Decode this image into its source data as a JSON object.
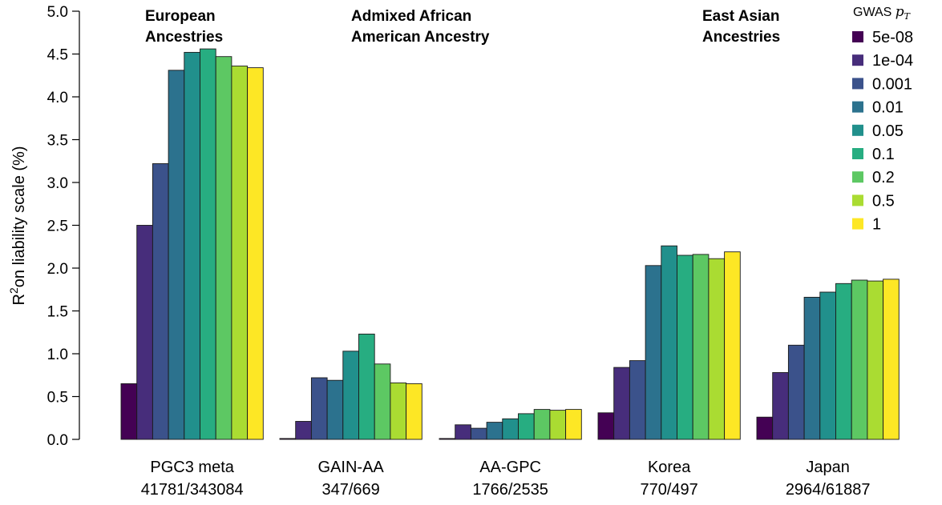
{
  "chart_data": {
    "type": "bar",
    "ylabel_prefix": "R",
    "ylabel_sup": "2",
    "ylabel_suffix": "on liability scale (%)",
    "ylim": [
      0,
      5
    ],
    "yticks": [
      "0.0",
      "0.5",
      "1.0",
      "1.5",
      "2.0",
      "2.5",
      "3.0",
      "3.5",
      "4.0",
      "4.5",
      "5.0"
    ],
    "group_titles": [
      {
        "lines": [
          "European",
          "Ancestries"
        ]
      },
      {
        "lines": [
          "Admixed African",
          "American Ancestry"
        ]
      },
      {
        "lines": [
          "East Asian",
          "Ancestries"
        ]
      }
    ],
    "legend": {
      "title_prefix": "GWAS",
      "title_symbol": "p",
      "title_sub": "T",
      "position": "top-right"
    },
    "series": [
      {
        "name": "5e-08",
        "color": "#440154",
        "values": [
          0.65,
          0.01,
          0.01,
          0.31,
          0.26
        ]
      },
      {
        "name": "1e-04",
        "color": "#472D7B",
        "values": [
          2.5,
          0.21,
          0.17,
          0.84,
          0.78
        ]
      },
      {
        "name": "0.001",
        "color": "#3B528B",
        "values": [
          3.22,
          0.72,
          0.13,
          0.92,
          1.1
        ]
      },
      {
        "name": "0.01",
        "color": "#2C728E",
        "values": [
          4.31,
          0.69,
          0.2,
          2.03,
          1.66
        ]
      },
      {
        "name": "0.05",
        "color": "#21908C",
        "values": [
          4.52,
          1.03,
          0.24,
          2.26,
          1.72
        ]
      },
      {
        "name": "0.1",
        "color": "#27AD81",
        "values": [
          4.56,
          1.23,
          0.3,
          2.15,
          1.82
        ]
      },
      {
        "name": "0.2",
        "color": "#5DC863",
        "values": [
          4.47,
          0.88,
          0.35,
          2.16,
          1.86
        ]
      },
      {
        "name": "0.5",
        "color": "#AADC32",
        "values": [
          4.36,
          0.66,
          0.34,
          2.11,
          1.85
        ]
      },
      {
        "name": "1",
        "color": "#FDE725",
        "values": [
          4.34,
          0.65,
          0.35,
          2.19,
          1.87
        ]
      }
    ],
    "groups": [
      {
        "name": "PGC3 meta",
        "sub": "41781/343084"
      },
      {
        "name": "GAIN-AA",
        "sub": "347/669"
      },
      {
        "name": "AA-GPC",
        "sub": "1766/2535"
      },
      {
        "name": "Korea",
        "sub": "770/497"
      },
      {
        "name": "Japan",
        "sub": "2964/61887"
      }
    ]
  }
}
